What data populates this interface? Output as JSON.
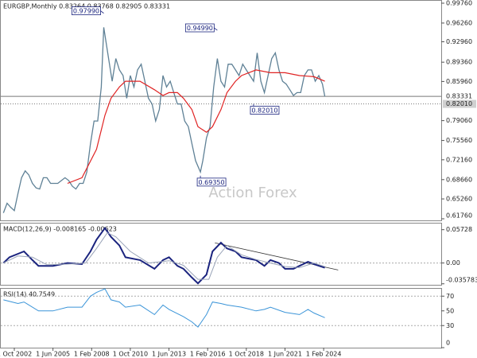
{
  "chart_data": [
    {
      "type": "line",
      "title": "EURGBP,Monthly 0.83264 0.83768 0.82905 0.83331",
      "watermark": "Action Forex",
      "ylim": [
        0.6148,
        1.0018
      ],
      "yticks": [
        {
          "value": 0.9976,
          "label": "0.99760"
        },
        {
          "value": 0.9626,
          "label": "0.96260"
        },
        {
          "value": 0.9296,
          "label": "0.92960"
        },
        {
          "value": 0.8936,
          "label": "0.89360"
        },
        {
          "value": 0.8596,
          "label": "0.85960"
        },
        {
          "value": 0.7906,
          "label": "0.79060"
        },
        {
          "value": 0.7556,
          "label": "0.75560"
        },
        {
          "value": 0.7216,
          "label": "0.72160"
        },
        {
          "value": 0.6866,
          "label": "0.68660"
        },
        {
          "value": 0.6526,
          "label": "0.65260"
        },
        {
          "value": 0.6176,
          "label": "0.61760"
        }
      ],
      "series": [
        {
          "color": "#5f8196",
          "width": 1.3,
          "x": [
            "2002-01",
            "2002-04",
            "2002-07",
            "2002-10",
            "2003-01",
            "2003-04",
            "2003-07",
            "2003-10",
            "2004-01",
            "2004-04",
            "2004-07",
            "2004-10",
            "2005-01",
            "2005-04",
            "2005-07",
            "2005-10",
            "2006-01",
            "2006-04",
            "2006-07",
            "2006-10",
            "2007-01",
            "2007-04",
            "2007-07",
            "2007-10",
            "2008-01",
            "2008-04",
            "2008-07",
            "2008-10",
            "2008-12",
            "2009-04",
            "2009-07",
            "2009-10",
            "2010-01",
            "2010-04",
            "2010-07",
            "2010-10",
            "2011-01",
            "2011-04",
            "2011-07",
            "2011-10",
            "2012-01",
            "2012-04",
            "2012-07",
            "2012-10",
            "2013-01",
            "2013-04",
            "2013-07",
            "2013-10",
            "2014-01",
            "2014-04",
            "2014-07",
            "2014-10",
            "2015-01",
            "2015-04",
            "2015-08",
            "2015-10",
            "2016-01",
            "2016-04",
            "2016-07",
            "2016-10",
            "2017-01",
            "2017-04",
            "2017-07",
            "2017-10",
            "2018-01",
            "2018-04",
            "2018-07",
            "2018-10",
            "2019-01",
            "2019-04",
            "2019-07",
            "2019-10",
            "2020-01",
            "2020-04",
            "2020-07",
            "2020-10",
            "2021-01",
            "2021-04",
            "2021-07",
            "2021-10",
            "2022-01",
            "2022-04",
            "2022-07",
            "2022-10",
            "2023-01",
            "2023-04",
            "2023-07",
            "2023-10",
            "2024-01",
            "2024-03"
          ],
          "values": [
            0.628,
            0.645,
            0.638,
            0.632,
            0.662,
            0.69,
            0.702,
            0.695,
            0.68,
            0.672,
            0.67,
            0.69,
            0.69,
            0.68,
            0.68,
            0.68,
            0.685,
            0.69,
            0.685,
            0.675,
            0.67,
            0.68,
            0.68,
            0.7,
            0.75,
            0.79,
            0.79,
            0.85,
            0.955,
            0.9,
            0.86,
            0.9,
            0.88,
            0.87,
            0.83,
            0.87,
            0.85,
            0.88,
            0.89,
            0.86,
            0.83,
            0.82,
            0.79,
            0.81,
            0.87,
            0.85,
            0.86,
            0.84,
            0.82,
            0.82,
            0.79,
            0.78,
            0.75,
            0.72,
            0.7,
            0.72,
            0.76,
            0.78,
            0.85,
            0.9,
            0.86,
            0.85,
            0.89,
            0.89,
            0.88,
            0.87,
            0.89,
            0.88,
            0.87,
            0.86,
            0.91,
            0.86,
            0.84,
            0.87,
            0.9,
            0.91,
            0.88,
            0.86,
            0.855,
            0.845,
            0.835,
            0.84,
            0.84,
            0.87,
            0.88,
            0.88,
            0.86,
            0.87,
            0.855,
            0.8333
          ]
        },
        {
          "color": "#e02424",
          "width": 1.2,
          "x": [
            "2006-06",
            "2007-06",
            "2008-06",
            "2009-01",
            "2009-06",
            "2010-01",
            "2010-06",
            "2011-06",
            "2012-06",
            "2013-01",
            "2013-06",
            "2014-01",
            "2014-06",
            "2015-01",
            "2015-06",
            "2016-01",
            "2016-06",
            "2017-01",
            "2017-06",
            "2018-01",
            "2018-06",
            "2019-06",
            "2020-06",
            "2021-06",
            "2022-06",
            "2023-06",
            "2024-03"
          ],
          "values": [
            0.68,
            0.69,
            0.74,
            0.8,
            0.83,
            0.85,
            0.86,
            0.86,
            0.845,
            0.835,
            0.84,
            0.84,
            0.83,
            0.81,
            0.78,
            0.77,
            0.78,
            0.81,
            0.84,
            0.86,
            0.87,
            0.88,
            0.875,
            0.875,
            0.87,
            0.868,
            0.86
          ]
        }
      ],
      "annotations": [
        {
          "x": "2008-12",
          "value": 0.9799,
          "label": "0.97990"
        },
        {
          "x": "2016-10",
          "value": 0.9499,
          "label": "0.94990"
        },
        {
          "x": "2015-08",
          "value": 0.6935,
          "label": "0.69350"
        },
        {
          "x": "2019-04",
          "value": 0.8201,
          "label": "0.82010"
        }
      ],
      "hlines": [
        {
          "value": 0.83331,
          "label": "0.83331",
          "style": "solid"
        },
        {
          "value": 0.8201,
          "label": "0.82010",
          "style": "dotted"
        }
      ]
    },
    {
      "type": "line",
      "title": "MACD(12,26,9) -0.008165 -0.00623",
      "ylim": [
        -0.0375,
        0.0678
      ],
      "yticks": [
        0.05728,
        {
          "value": 0,
          "label": "0.00"
        },
        -0.035783
      ],
      "series": [
        {
          "color": "#1a237e",
          "width": 2,
          "x": [
            "2002-01",
            "2002-06",
            "2003-06",
            "2004-01",
            "2004-06",
            "2005-06",
            "2006-06",
            "2007-06",
            "2008-01",
            "2008-06",
            "2009-01",
            "2009-06",
            "2010-01",
            "2010-06",
            "2011-06",
            "2012-06",
            "2013-01",
            "2013-06",
            "2014-01",
            "2014-06",
            "2015-01",
            "2015-06",
            "2016-01",
            "2016-06",
            "2017-01",
            "2017-06",
            "2018-01",
            "2018-06",
            "2019-06",
            "2020-01",
            "2020-06",
            "2021-01",
            "2021-06",
            "2022-01",
            "2022-06",
            "2023-01",
            "2023-06",
            "2024-03"
          ],
          "values": [
            0.0,
            0.01,
            0.02,
            0.005,
            -0.005,
            -0.005,
            0.0,
            -0.002,
            0.02,
            0.04,
            0.06,
            0.045,
            0.03,
            0.01,
            0.005,
            -0.01,
            0.005,
            0.01,
            -0.005,
            -0.01,
            -0.025,
            -0.035,
            -0.02,
            0.02,
            0.035,
            0.025,
            0.02,
            0.01,
            0.005,
            -0.005,
            0.005,
            0.0,
            -0.01,
            -0.01,
            -0.005,
            0.002,
            -0.002,
            -0.008165
          ]
        },
        {
          "color": "#9aa4b8",
          "width": 1,
          "x": [
            "2002-01",
            "2003-01",
            "2004-01",
            "2005-01",
            "2006-06",
            "2007-09",
            "2008-06",
            "2009-03",
            "2009-10",
            "2010-10",
            "2012-01",
            "2013-06",
            "2014-06",
            "2015-06",
            "2016-03",
            "2016-10",
            "2017-06",
            "2018-06",
            "2019-06",
            "2020-06",
            "2021-06",
            "2022-06",
            "2023-06",
            "2024-03"
          ],
          "values": [
            0.0,
            0.012,
            0.01,
            -0.003,
            -0.002,
            0.0,
            0.025,
            0.052,
            0.045,
            0.02,
            0.0,
            0.004,
            -0.004,
            -0.028,
            -0.028,
            0.01,
            0.03,
            0.014,
            0.006,
            0.0,
            -0.006,
            -0.008,
            0.0,
            -0.00623
          ]
        }
      ],
      "trendline": {
        "x": [
          "2016-08",
          "2025-02"
        ],
        "values": [
          0.0346,
          -0.012
        ],
        "color": "#333333"
      }
    },
    {
      "type": "line",
      "title": "RSI(14) 40.7549",
      "ylim": [
        0,
        80
      ],
      "yticks": [
        70,
        50,
        30,
        0
      ],
      "levels": [
        70,
        30
      ],
      "series": [
        {
          "color": "#3a94d8",
          "width": 1,
          "x": [
            "2002-01",
            "2003-01",
            "2003-06",
            "2004-06",
            "2005-06",
            "2006-06",
            "2007-06",
            "2008-01",
            "2008-06",
            "2009-01",
            "2009-06",
            "2010-01",
            "2010-06",
            "2011-06",
            "2012-06",
            "2013-01",
            "2013-06",
            "2014-06",
            "2015-01",
            "2015-06",
            "2016-01",
            "2016-06",
            "2017-01",
            "2017-06",
            "2018-06",
            "2019-06",
            "2020-01",
            "2020-06",
            "2021-06",
            "2022-06",
            "2023-01",
            "2023-06",
            "2024-03"
          ],
          "values": [
            65,
            60,
            62,
            50,
            50,
            55,
            55,
            70,
            75,
            80,
            65,
            62,
            55,
            58,
            45,
            58,
            52,
            42,
            35,
            28,
            45,
            62,
            60,
            58,
            55,
            50,
            52,
            55,
            48,
            45,
            52,
            47,
            40.7549
          ]
        }
      ],
      "xticks": [
        {
          "value": "2002-10",
          "label": "1 Oct 2002"
        },
        {
          "value": "2005-06",
          "label": "1 Jun 2005"
        },
        {
          "value": "2008-02",
          "label": "1 Feb 2008"
        },
        {
          "value": "2010-10",
          "label": "1 Oct 2010"
        },
        {
          "value": "2013-06",
          "label": "1 Jun 2013"
        },
        {
          "value": "2016-02",
          "label": "1 Feb 2016"
        },
        {
          "value": "2018-10",
          "label": "1 Oct 2018"
        },
        {
          "value": "2021-06",
          "label": "1 Jun 2021"
        },
        {
          "value": "2024-02",
          "label": "1 Feb 2024"
        }
      ]
    }
  ]
}
